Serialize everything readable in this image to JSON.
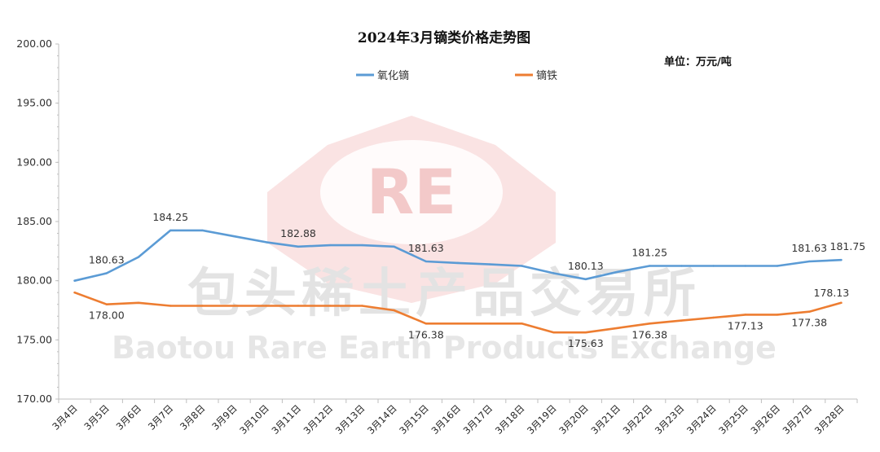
{
  "chart_data": {
    "type": "line",
    "title": "2024年3月镝类价格走势图",
    "unit_label": "单位：万元/吨",
    "categories": [
      "3月4日",
      "3月5日",
      "3月6日",
      "3月7日",
      "3月8日",
      "3月9日",
      "3月10日",
      "3月11日",
      "3月12日",
      "3月13日",
      "3月14日",
      "3月15日",
      "3月16日",
      "3月17日",
      "3月18日",
      "3月19日",
      "3月20日",
      "3月21日",
      "3月22日",
      "3月23日",
      "3月24日",
      "3月25日",
      "3月26日",
      "3月27日",
      "3月28日"
    ],
    "ylim": [
      170,
      200
    ],
    "yticks": [
      "170.00",
      "175.00",
      "180.00",
      "185.00",
      "190.00",
      "195.00",
      "200.00"
    ],
    "legend_position": "top-center",
    "grid": false,
    "series": [
      {
        "name": "氧化镝",
        "color": "#5b9bd5",
        "values": [
          180.0,
          180.63,
          182.0,
          184.25,
          184.25,
          183.75,
          183.25,
          182.88,
          183.0,
          183.0,
          182.88,
          181.63,
          181.5,
          181.38,
          181.25,
          180.63,
          180.13,
          180.75,
          181.25,
          181.25,
          181.25,
          181.25,
          181.25,
          181.63,
          181.75
        ],
        "labels": [
          null,
          "180.63",
          null,
          "184.25",
          null,
          null,
          null,
          "182.88",
          null,
          null,
          null,
          "181.63",
          null,
          null,
          null,
          null,
          "180.13",
          null,
          "181.25",
          null,
          null,
          null,
          null,
          "181.63",
          "181.75"
        ]
      },
      {
        "name": "镝铁",
        "color": "#ed7d31",
        "values": [
          179.0,
          178.0,
          178.13,
          177.88,
          177.88,
          177.88,
          177.88,
          177.88,
          177.88,
          177.88,
          177.5,
          176.38,
          176.38,
          176.38,
          176.38,
          175.63,
          175.63,
          176.0,
          176.38,
          176.63,
          176.88,
          177.13,
          177.13,
          177.38,
          178.13
        ],
        "labels": [
          null,
          "178.00",
          null,
          null,
          null,
          null,
          null,
          null,
          null,
          null,
          null,
          "176.38",
          null,
          null,
          null,
          null,
          "175.63",
          null,
          "176.38",
          null,
          null,
          "177.13",
          null,
          "177.38",
          "178.13"
        ]
      }
    ]
  },
  "watermark": {
    "logo_text": "RE",
    "cn_text": "包头稀土产品交易所",
    "en_text": "Baotou Rare Earth Products Exchange"
  }
}
